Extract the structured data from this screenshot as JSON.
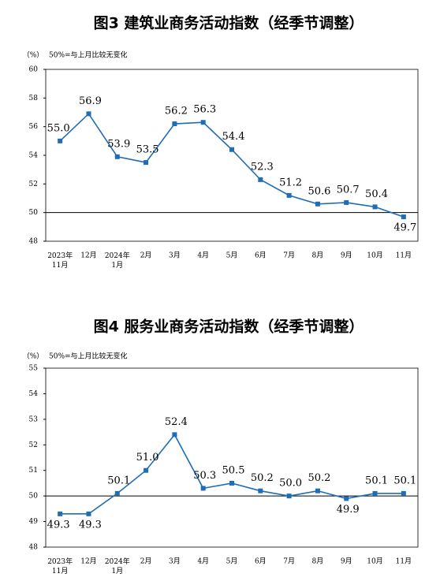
{
  "chart_data": [
    {
      "type": "line",
      "title": "图3  建筑业商务活动指数（经季节调整）",
      "unit": "（%）",
      "note": "50%=与上月比较无变化",
      "categories": [
        "2023年\n11月",
        "12月",
        "2024年\n1月",
        "2月",
        "3月",
        "4月",
        "5月",
        "6月",
        "7月",
        "8月",
        "9月",
        "10月",
        "11月"
      ],
      "series": [
        {
          "color": "#1f6db5",
          "values": [
            55.0,
            56.9,
            53.9,
            53.5,
            56.2,
            56.3,
            54.4,
            52.3,
            51.2,
            50.6,
            50.7,
            50.4,
            49.7
          ],
          "value_labels": [
            "55.0",
            "56.9",
            "53.9",
            "53.5",
            "56.2",
            "56.3",
            "54.4",
            "52.3",
            "51.2",
            "50.6",
            "50.7",
            "50.4",
            "49.7"
          ]
        }
      ],
      "ylim": [
        48,
        60
      ],
      "yticks": [
        48,
        50,
        52,
        54,
        56,
        58,
        60
      ],
      "hline": 50
    },
    {
      "type": "line",
      "title": "图4  服务业商务活动指数（经季节调整）",
      "unit": "（%）",
      "note": "50%=与上月比较无变化",
      "categories": [
        "2023年\n11月",
        "12月",
        "2024年\n1月",
        "2月",
        "3月",
        "4月",
        "5月",
        "6月",
        "7月",
        "8月",
        "9月",
        "10月",
        "11月"
      ],
      "series": [
        {
          "color": "#1f6db5",
          "values": [
            49.3,
            49.3,
            50.1,
            51.0,
            52.4,
            50.3,
            50.5,
            50.2,
            50.0,
            50.2,
            49.9,
            50.1,
            50.1
          ],
          "value_labels": [
            "49.3",
            "49.3",
            "50.1",
            "51.0",
            "52.4",
            "50.3",
            "50.5",
            "50.2",
            "50.0",
            "50.2",
            "49.9",
            "50.1",
            "50.1"
          ]
        }
      ],
      "ylim": [
        48,
        55
      ],
      "yticks": [
        48,
        49,
        50,
        51,
        52,
        53,
        54,
        55
      ],
      "hline": 50
    }
  ]
}
